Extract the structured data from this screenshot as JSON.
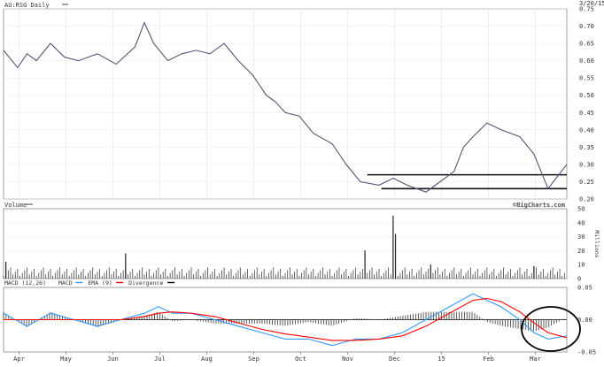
{
  "chart_data": {
    "type": "line",
    "price_panel": {
      "title": "AU:RSG Daily",
      "date_label": "3/20/15",
      "ylim": [
        0.2,
        0.75
      ],
      "y_ticks": [
        0.2,
        0.25,
        0.3,
        0.35,
        0.4,
        0.45,
        0.5,
        0.55,
        0.6,
        0.65,
        0.7,
        0.75
      ],
      "y_tick_labels": [
        "0.20",
        "0.25",
        "0.30",
        "0.35",
        "0.40",
        "0.45",
        "0.50",
        "0.55",
        "0.60",
        "0.65",
        "0.70",
        "0.75"
      ],
      "x_labels": [
        "Apr",
        "May",
        "Jun",
        "Jul",
        "Aug",
        "Sep",
        "Oct",
        "Nov",
        "Dec",
        "15",
        "Feb",
        "Mar"
      ],
      "x_label_dates": [
        0.33,
        1.33,
        2.33,
        3.33,
        4.33,
        5.33,
        6.33,
        7.33,
        8.33,
        9.33,
        10.33,
        11.33
      ],
      "series": [
        {
          "x": [
            0,
            0.3,
            0.5,
            0.7,
            1,
            1.3,
            1.6,
            2,
            2.4,
            2.8,
            3,
            3.2,
            3.5,
            3.8,
            4.1,
            4.4,
            4.7,
            5,
            5.3,
            5.6,
            5.8,
            6,
            6.3,
            6.6,
            7,
            7.3,
            7.6,
            8,
            8.3,
            8.6,
            9,
            9.3,
            9.6,
            9.8,
            10,
            10.3,
            10.6,
            11,
            11.3,
            11.6,
            12
          ],
          "values": [
            0.63,
            0.58,
            0.62,
            0.6,
            0.65,
            0.61,
            0.6,
            0.62,
            0.59,
            0.64,
            0.71,
            0.65,
            0.6,
            0.62,
            0.63,
            0.62,
            0.65,
            0.6,
            0.56,
            0.5,
            0.48,
            0.45,
            0.44,
            0.39,
            0.36,
            0.3,
            0.25,
            0.24,
            0.26,
            0.24,
            0.22,
            0.25,
            0.28,
            0.35,
            0.38,
            0.42,
            0.4,
            0.38,
            0.33,
            0.23,
            0.3
          ]
        }
      ],
      "support_lines": [
        0.27,
        0.23
      ]
    },
    "volume_panel": {
      "title": "Volume",
      "watermark": "©BigCharts.com",
      "unit_label": "Millions",
      "ylim": [
        0,
        50
      ],
      "y_ticks": [
        0,
        10,
        20,
        30,
        40,
        50
      ],
      "y_tick_labels": [
        "0",
        "10",
        "20",
        "30",
        "40",
        "50"
      ],
      "spikes": [
        {
          "x": 0.05,
          "value": 12
        },
        {
          "x": 2.6,
          "value": 18
        },
        {
          "x": 7.7,
          "value": 20
        },
        {
          "x": 8.3,
          "value": 45
        },
        {
          "x": 8.35,
          "value": 32
        },
        {
          "x": 9.1,
          "value": 10
        },
        {
          "x": 11.3,
          "value": 9
        }
      ]
    },
    "macd_panel": {
      "title": "MACD (12,26)",
      "legend": [
        {
          "name": "MACD",
          "color": "#3399ff"
        },
        {
          "name": "EMA (9)",
          "color": "#ff0000"
        },
        {
          "name": "Divergence",
          "color": "#000000"
        }
      ],
      "ylim": [
        -0.05,
        0.05
      ],
      "y_ticks": [
        -0.05,
        0.0,
        0.05
      ],
      "y_tick_labels": [
        "-0.05",
        "0.00",
        "0.05"
      ],
      "macd": {
        "x": [
          0,
          0.5,
          1,
          1.5,
          2,
          2.5,
          3,
          3.3,
          3.6,
          4,
          4.5,
          5,
          5.5,
          6,
          6.5,
          7,
          7.5,
          8,
          8.5,
          9,
          9.5,
          10,
          10.3,
          10.6,
          11,
          11.3,
          11.6,
          12
        ],
        "values": [
          0.01,
          -0.01,
          0.01,
          0.0,
          -0.01,
          0.0,
          0.01,
          0.02,
          0.01,
          0.01,
          0.0,
          -0.01,
          -0.02,
          -0.03,
          -0.03,
          -0.04,
          -0.03,
          -0.03,
          -0.02,
          0.0,
          0.02,
          0.04,
          0.03,
          0.02,
          0.0,
          -0.02,
          -0.03,
          -0.025
        ]
      },
      "signal": {
        "x": [
          0,
          0.5,
          1,
          1.5,
          2,
          2.5,
          3,
          3.3,
          3.6,
          4,
          4.5,
          5,
          5.5,
          6,
          6.5,
          7,
          7.5,
          8,
          8.5,
          9,
          9.5,
          10,
          10.3,
          10.6,
          11,
          11.3,
          11.6,
          12
        ],
        "values": [
          0.0,
          0.0,
          0.0,
          0.0,
          0.0,
          0.0,
          0.005,
          0.01,
          0.012,
          0.01,
          0.005,
          -0.005,
          -0.015,
          -0.022,
          -0.027,
          -0.032,
          -0.032,
          -0.03,
          -0.025,
          -0.01,
          0.01,
          0.03,
          0.033,
          0.028,
          0.012,
          -0.005,
          -0.02,
          -0.028
        ]
      }
    }
  }
}
